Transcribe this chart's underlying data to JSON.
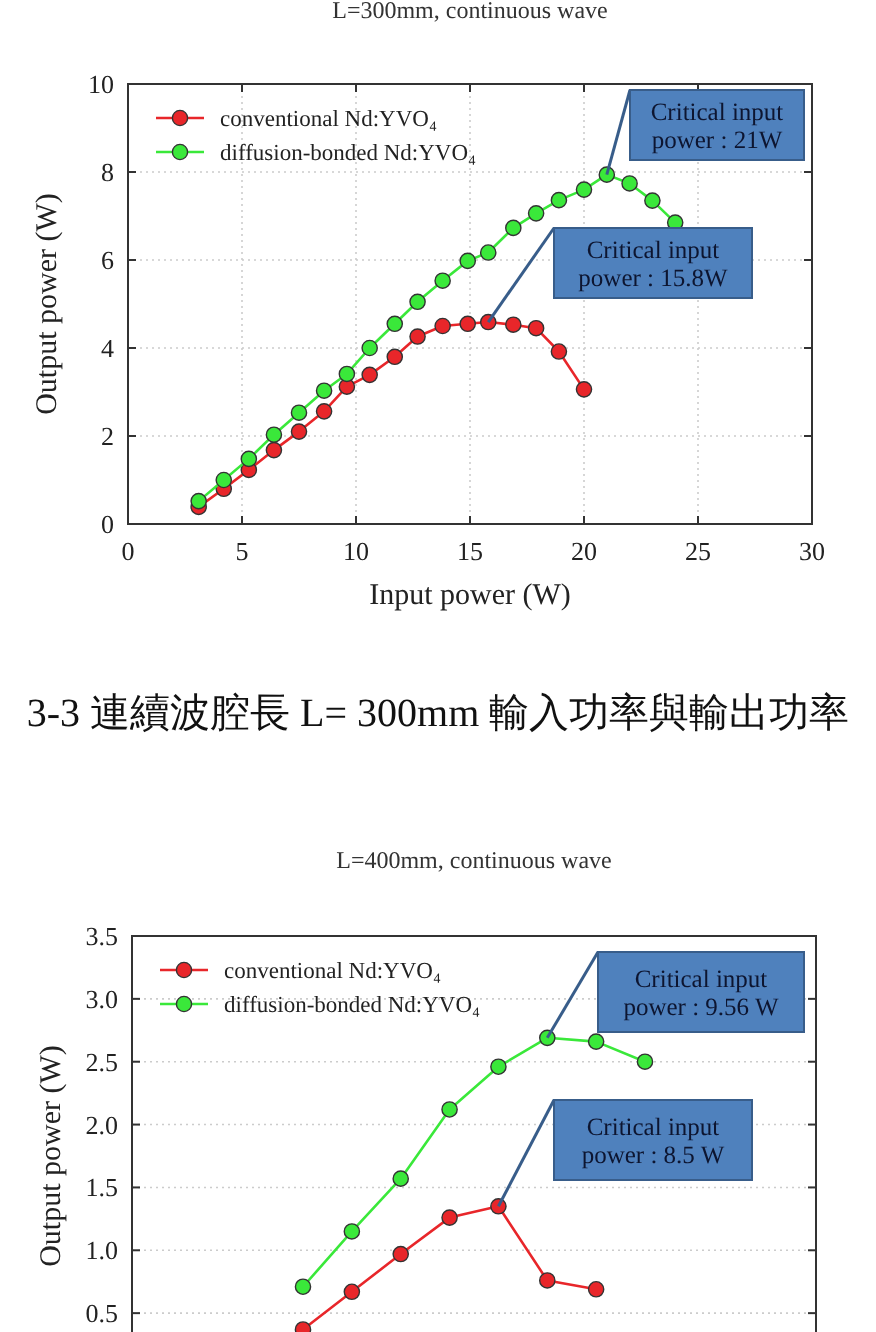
{
  "chart_data": [
    {
      "type": "line",
      "title": "L=300mm, continuous wave",
      "xlabel": "Input power (W)",
      "ylabel": "Output power (W)",
      "xlim": [
        0,
        30
      ],
      "xticks": [
        0,
        5,
        10,
        15,
        20,
        25,
        30
      ],
      "ylim": [
        0,
        10
      ],
      "yticks": [
        0,
        2,
        4,
        6,
        8,
        10
      ],
      "grid": true,
      "legend": "top left",
      "marker": "circle",
      "line_style": "solid",
      "series": [
        {
          "name": "conventional Nd:YVO₄",
          "color": "#e8262a",
          "x": [
            3.1,
            4.2,
            5.3,
            6.4,
            7.5,
            8.6,
            9.6,
            10.6,
            11.7,
            12.7,
            13.8,
            14.9,
            15.8,
            16.9,
            17.9,
            18.9,
            20.0
          ],
          "values": [
            0.39,
            0.8,
            1.23,
            1.68,
            2.1,
            2.56,
            3.12,
            3.39,
            3.8,
            4.26,
            4.5,
            4.55,
            4.59,
            4.53,
            4.45,
            3.92,
            3.06
          ]
        },
        {
          "name": "diffusion-bonded Nd:YVO₄",
          "color": "#3ae83a",
          "x": [
            3.1,
            4.2,
            5.3,
            6.4,
            7.5,
            8.6,
            9.6,
            10.6,
            11.7,
            12.7,
            13.8,
            14.9,
            15.8,
            16.9,
            17.9,
            18.9,
            20.0,
            21.0,
            22.0,
            23.0,
            24.0
          ],
          "values": [
            0.52,
            1.0,
            1.48,
            2.03,
            2.53,
            3.03,
            3.41,
            4.0,
            4.55,
            5.05,
            5.53,
            5.98,
            6.17,
            6.73,
            7.06,
            7.36,
            7.6,
            7.94,
            7.74,
            7.35,
            6.85
          ]
        }
      ],
      "annotations": [
        {
          "text": "Critical input\npower : 21W",
          "x": 21.0,
          "y": 7.94
        },
        {
          "text": "Critical input\npower : 15.8W",
          "x": 15.8,
          "y": 4.59
        },
        "3-3  連續波腔長  L= 300mm  輸入功率與輸出功率"
      ]
    },
    {
      "type": "line",
      "title": "L=400mm, continuous wave",
      "ylabel": "Output power (W)",
      "categories": [
        null,
        null,
        null,
        null,
        null,
        null,
        null,
        null,
        null,
        null,
        null,
        null,
        null,
        null
      ],
      "ylim": [
        0,
        3.5
      ],
      "yticks": [
        {
          "value": 0.5,
          "label": "0.5"
        },
        {
          "value": 1.0,
          "label": "1.0"
        },
        {
          "value": 1.5,
          "label": "1.5"
        },
        {
          "value": 2.0,
          "label": "2.0"
        },
        {
          "value": 2.5,
          "label": "2.5"
        },
        {
          "value": 3.0,
          "label": "3.0"
        },
        {
          "value": 3.5,
          "label": "3.5"
        }
      ],
      "tick_labels": "y",
      "grid": true,
      "legend": "top left",
      "marker": "circle",
      "line_style": "solid",
      "series": [
        {
          "name": "conventional Nd:YVO₄",
          "color": "#e8262a",
          "values": [
            null,
            null,
            null,
            0.37,
            0.67,
            0.97,
            1.26,
            1.35,
            0.76,
            0.69,
            null,
            null,
            null,
            null
          ]
        },
        {
          "name": "diffusion-bonded Nd:YVO₄",
          "color": "#3ae83a",
          "values": [
            null,
            null,
            null,
            0.71,
            1.15,
            1.57,
            2.12,
            2.46,
            2.69,
            2.66,
            2.5,
            null,
            null,
            null
          ]
        }
      ],
      "annotations": [
        "Critical input\npower : 9.56 W",
        "Critical input\npower : 8.5 W"
      ]
    }
  ]
}
